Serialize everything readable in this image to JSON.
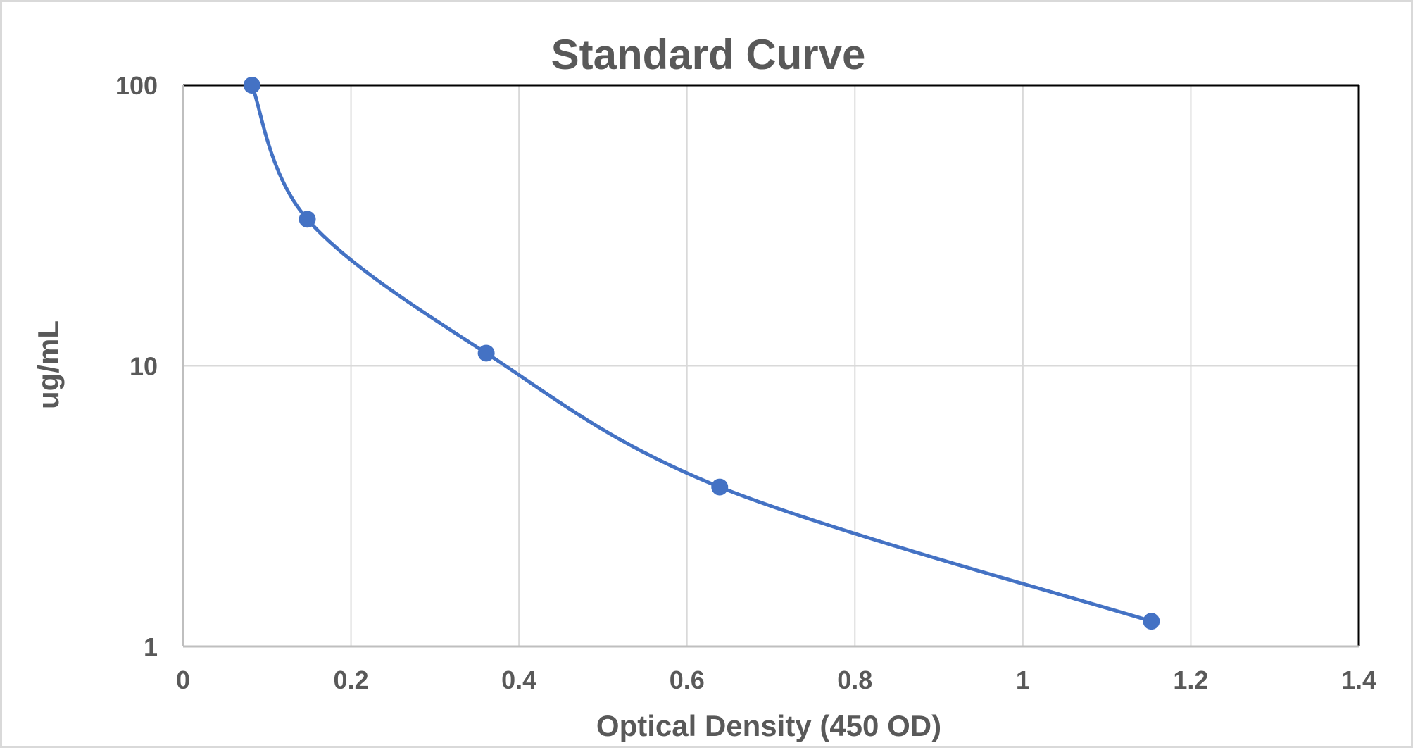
{
  "chart_data": {
    "type": "scatter",
    "title": "Standard Curve",
    "xlabel": "Optical Density (450 OD)",
    "ylabel": "ug/mL",
    "xlim": [
      0,
      1.4
    ],
    "ylim": [
      1,
      100
    ],
    "y_scale": "log",
    "x_ticks": [
      "0",
      "0.2",
      "0.4",
      "0.6",
      "0.8",
      "1",
      "1.2",
      "1.4"
    ],
    "y_ticks": [
      "1",
      "10",
      "100"
    ],
    "grid": true,
    "smoothed_line": true,
    "series_color": "#4472c4",
    "points": [
      {
        "x": 0.082,
        "y": 100
      },
      {
        "x": 0.148,
        "y": 33.3
      },
      {
        "x": 0.361,
        "y": 11.1
      },
      {
        "x": 0.639,
        "y": 3.7
      },
      {
        "x": 1.153,
        "y": 1.23
      }
    ]
  }
}
